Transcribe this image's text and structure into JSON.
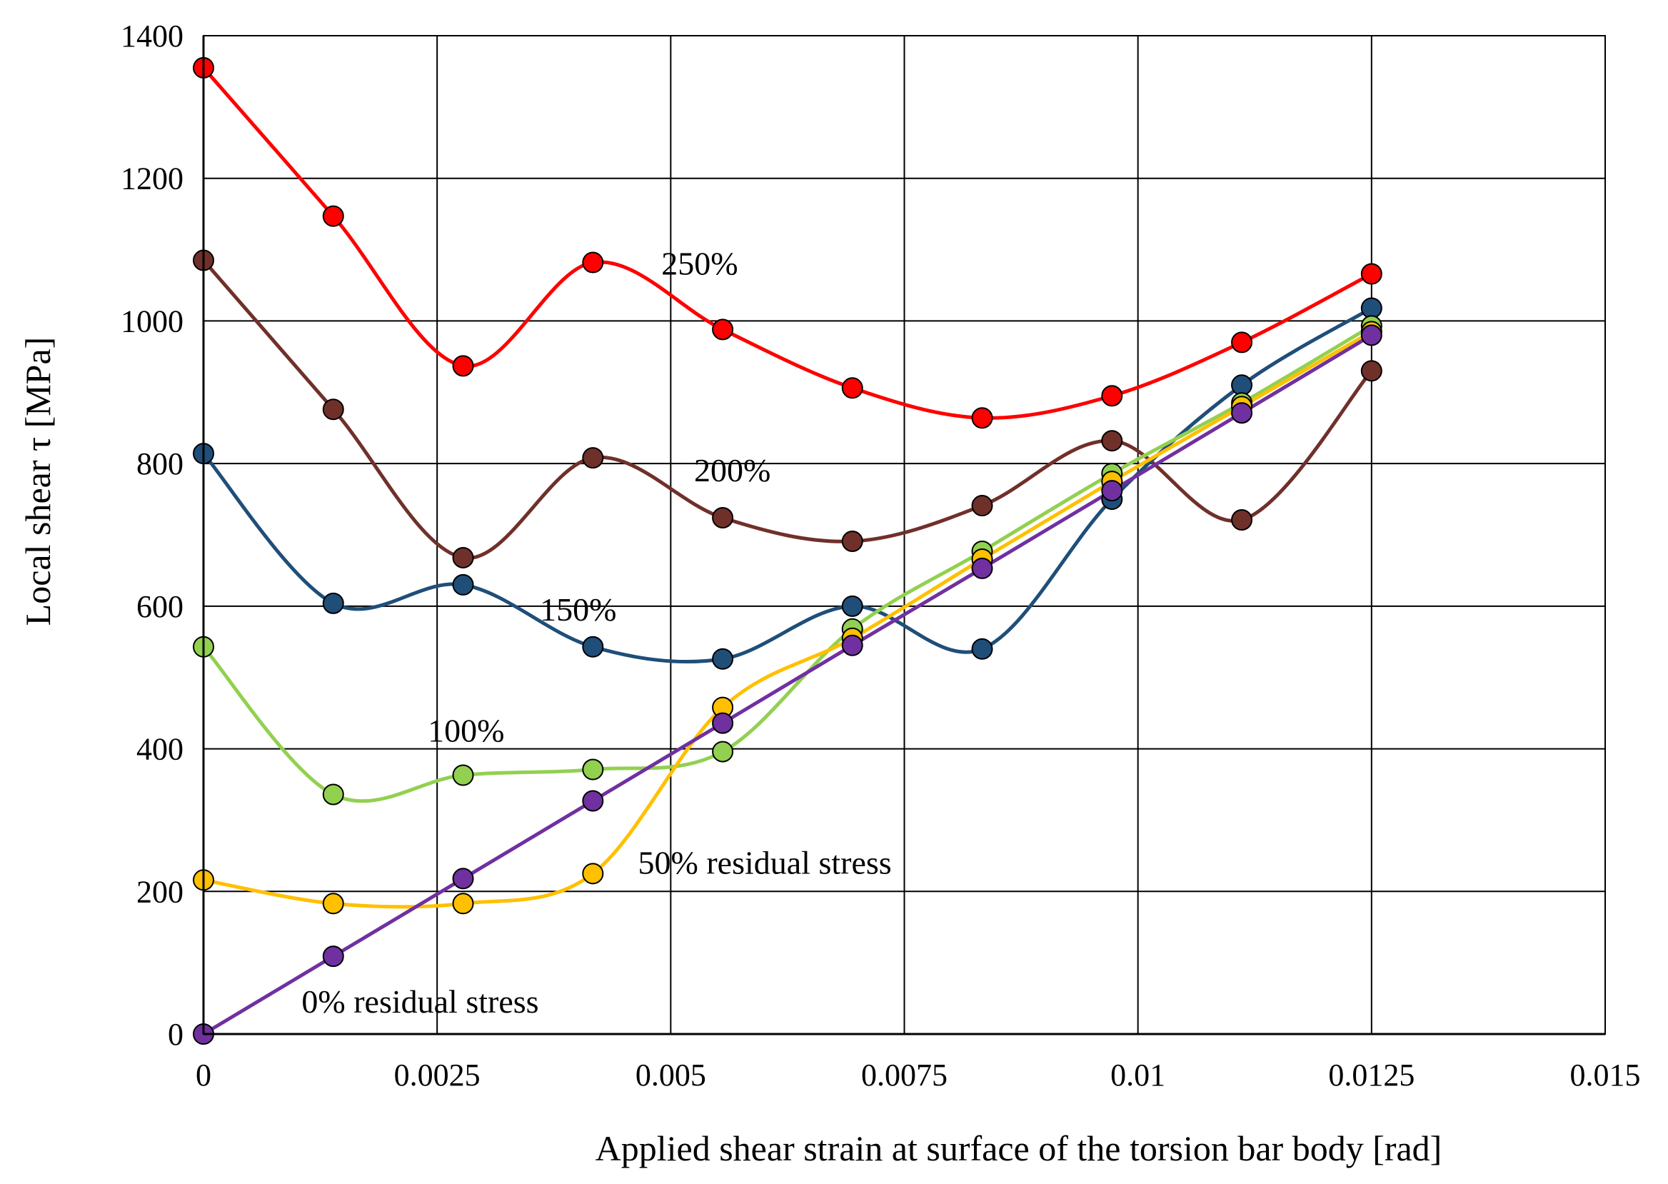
{
  "chart_data": {
    "type": "line",
    "xlabel": "Applied shear strain at surface of the torsion bar body [rad]",
    "ylabel": "Local shear τ [MPa]",
    "xlim": [
      0,
      0.015
    ],
    "ylim": [
      0,
      1400
    ],
    "x_ticks": [
      0,
      0.0025,
      0.005,
      0.0075,
      0.01,
      0.0125,
      0.015
    ],
    "x_tick_labels": [
      "0",
      "0.0025",
      "0.005",
      "0.0075",
      "0.01",
      "0.0125",
      "0.015"
    ],
    "y_ticks": [
      0,
      200,
      400,
      600,
      800,
      1000,
      1200,
      1400
    ],
    "y_tick_labels": [
      "0",
      "200",
      "400",
      "600",
      "800",
      "1000",
      "1200",
      "1400"
    ],
    "grid": true,
    "x": [
      0,
      0.001389,
      0.002778,
      0.004167,
      0.005556,
      0.006944,
      0.008333,
      0.009722,
      0.011111,
      0.0125
    ],
    "series": [
      {
        "name": "250%",
        "color": "#ff0000",
        "values": [
          1355,
          1147,
          937,
          1082,
          988,
          906,
          864,
          895,
          970,
          1066
        ]
      },
      {
        "name": "200%",
        "color": "#70302a",
        "values": [
          1085,
          876,
          668,
          808,
          724,
          691,
          741,
          832,
          721,
          930
        ]
      },
      {
        "name": "150%",
        "color": "#1f4e79",
        "values": [
          814,
          604,
          630,
          543,
          526,
          600,
          540,
          750,
          910,
          1018
        ]
      },
      {
        "name": "100%",
        "color": "#92d050",
        "values": [
          543,
          336,
          363,
          371,
          396,
          568,
          677,
          786,
          885,
          993
        ]
      },
      {
        "name": "50% residual stress",
        "color": "#ffc000",
        "values": [
          216,
          183,
          183,
          225,
          458,
          555,
          666,
          775,
          880,
          985
        ]
      },
      {
        "name": "0% residual stress",
        "color": "#7030a0",
        "values": [
          0,
          109,
          218,
          327,
          436,
          545,
          653,
          762,
          871,
          980
        ]
      }
    ],
    "annotations": [
      {
        "text": "250%",
        "x": 0.0049,
        "y": 1065
      },
      {
        "text": "200%",
        "x": 0.00525,
        "y": 775
      },
      {
        "text": "150%",
        "x": 0.0036,
        "y": 580
      },
      {
        "text": "100%",
        "x": 0.0024,
        "y": 410
      },
      {
        "text": "50% residual stress",
        "x": 0.00465,
        "y": 225
      },
      {
        "text": "0% residual stress",
        "x": 0.00105,
        "y": 30
      }
    ]
  }
}
